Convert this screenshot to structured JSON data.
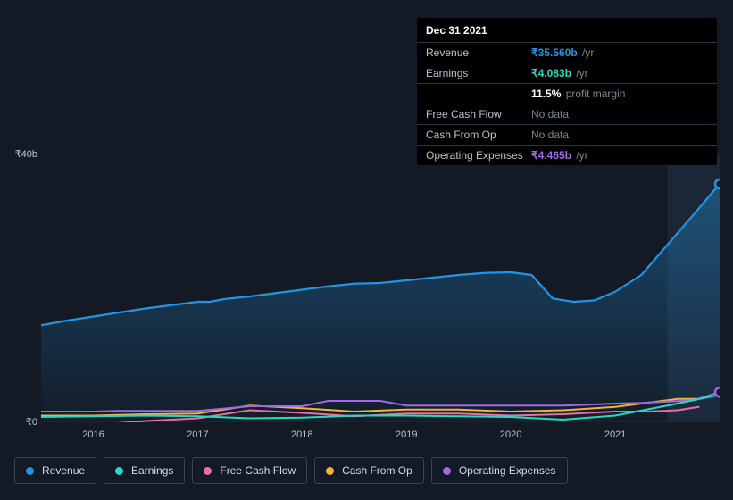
{
  "tooltip": {
    "date": "Dec 31 2021",
    "rows": [
      {
        "label": "Revenue",
        "value": "₹35.560b",
        "unit": "/yr",
        "colorKey": "revenue"
      },
      {
        "label": "Earnings",
        "value": "₹4.083b",
        "unit": "/yr",
        "colorKey": "earnings"
      },
      {
        "label": "",
        "value": "11.5%",
        "unit": "profit margin",
        "colorKey": "plain",
        "sub": true
      },
      {
        "label": "Free Cash Flow",
        "value": "No data",
        "nodata": true
      },
      {
        "label": "Cash From Op",
        "value": "No data",
        "nodata": true
      },
      {
        "label": "Operating Expenses",
        "value": "₹4.465b",
        "unit": "/yr",
        "colorKey": "opex"
      }
    ]
  },
  "chart": {
    "type": "area-line",
    "background": "#131a25",
    "x_domain": [
      2015.5,
      2022.0
    ],
    "x_ticks": [
      2016,
      2017,
      2018,
      2019,
      2020,
      2021
    ],
    "y_domain": [
      0,
      40
    ],
    "y_ticks": [
      {
        "v": 40,
        "label": "₹40b"
      },
      {
        "v": 0,
        "label": "₹0"
      }
    ],
    "series": {
      "revenue": {
        "label": "Revenue",
        "color": "#2394df",
        "fill_top_opacity": 0.4,
        "fill_bottom_opacity": 0.02,
        "points": [
          [
            2015.5,
            14.5
          ],
          [
            2015.75,
            15.2
          ],
          [
            2016.0,
            15.8
          ],
          [
            2016.25,
            16.4
          ],
          [
            2016.5,
            17.0
          ],
          [
            2016.75,
            17.5
          ],
          [
            2017.0,
            18.0
          ],
          [
            2017.12,
            18.0
          ],
          [
            2017.25,
            18.4
          ],
          [
            2017.5,
            18.8
          ],
          [
            2017.75,
            19.3
          ],
          [
            2018.0,
            19.8
          ],
          [
            2018.25,
            20.3
          ],
          [
            2018.5,
            20.7
          ],
          [
            2018.75,
            20.8
          ],
          [
            2019.0,
            21.2
          ],
          [
            2019.25,
            21.6
          ],
          [
            2019.5,
            22.0
          ],
          [
            2019.75,
            22.3
          ],
          [
            2020.0,
            22.4
          ],
          [
            2020.2,
            22.0
          ],
          [
            2020.4,
            18.5
          ],
          [
            2020.6,
            18.0
          ],
          [
            2020.8,
            18.2
          ],
          [
            2021.0,
            19.5
          ],
          [
            2021.25,
            22.0
          ],
          [
            2021.5,
            26.5
          ],
          [
            2021.75,
            31.0
          ],
          [
            2022.0,
            35.6
          ]
        ]
      },
      "earnings": {
        "label": "Earnings",
        "color": "#27d9c3",
        "points": [
          [
            2015.5,
            0.8
          ],
          [
            2016.0,
            0.9
          ],
          [
            2016.5,
            1.0
          ],
          [
            2017.0,
            0.9
          ],
          [
            2017.5,
            0.6
          ],
          [
            2018.0,
            0.7
          ],
          [
            2018.5,
            1.0
          ],
          [
            2019.0,
            1.0
          ],
          [
            2019.5,
            0.9
          ],
          [
            2020.0,
            0.8
          ],
          [
            2020.5,
            0.4
          ],
          [
            2021.0,
            1.0
          ],
          [
            2021.5,
            2.5
          ],
          [
            2022.0,
            4.1
          ]
        ]
      },
      "fcf": {
        "label": "Free Cash Flow",
        "color": "#e76fa3",
        "points": [
          [
            2016.25,
            -0.1
          ],
          [
            2016.5,
            0.2
          ],
          [
            2017.0,
            0.6
          ],
          [
            2017.5,
            1.8
          ],
          [
            2018.0,
            1.4
          ],
          [
            2018.5,
            0.9
          ],
          [
            2019.0,
            1.3
          ],
          [
            2019.5,
            1.3
          ],
          [
            2020.0,
            1.0
          ],
          [
            2020.5,
            1.2
          ],
          [
            2021.0,
            1.6
          ],
          [
            2021.3,
            1.6
          ],
          [
            2021.6,
            1.8
          ],
          [
            2021.8,
            2.3
          ]
        ]
      },
      "cfo": {
        "label": "Cash From Op",
        "color": "#f2b33d",
        "points": [
          [
            2015.5,
            1.0
          ],
          [
            2016.0,
            1.0
          ],
          [
            2016.5,
            1.2
          ],
          [
            2017.0,
            1.3
          ],
          [
            2017.5,
            2.5
          ],
          [
            2018.0,
            2.1
          ],
          [
            2018.5,
            1.6
          ],
          [
            2019.0,
            1.9
          ],
          [
            2019.5,
            1.9
          ],
          [
            2020.0,
            1.6
          ],
          [
            2020.5,
            1.8
          ],
          [
            2021.0,
            2.3
          ],
          [
            2021.3,
            2.9
          ],
          [
            2021.6,
            3.5
          ],
          [
            2021.8,
            3.5
          ]
        ]
      },
      "opex": {
        "label": "Operating Expenses",
        "color": "#a169e8",
        "points": [
          [
            2015.5,
            1.6
          ],
          [
            2016.0,
            1.6
          ],
          [
            2016.25,
            1.7
          ],
          [
            2016.5,
            1.7
          ],
          [
            2017.0,
            1.7
          ],
          [
            2017.5,
            2.4
          ],
          [
            2018.0,
            2.4
          ],
          [
            2018.25,
            3.2
          ],
          [
            2018.75,
            3.2
          ],
          [
            2019.0,
            2.5
          ],
          [
            2019.5,
            2.5
          ],
          [
            2020.0,
            2.5
          ],
          [
            2020.5,
            2.5
          ],
          [
            2021.0,
            2.8
          ],
          [
            2021.25,
            2.9
          ],
          [
            2021.5,
            3.1
          ],
          [
            2021.75,
            3.3
          ],
          [
            2022.0,
            4.5
          ]
        ]
      }
    },
    "marker_x": 2022.0,
    "highlight_band": [
      2021.5,
      2022.0
    ],
    "highlight_color": "#1b2636",
    "legend_order": [
      "revenue",
      "earnings",
      "fcf",
      "cfo",
      "opex"
    ]
  },
  "colors": {
    "revenue": "#2394df",
    "earnings": "#27d9c3",
    "fcf": "#e76fa3",
    "cfo": "#f2b33d",
    "opex": "#a169e8",
    "plain": "#ffffff",
    "grid": "#232c38",
    "text_muted": "#7a8492"
  }
}
